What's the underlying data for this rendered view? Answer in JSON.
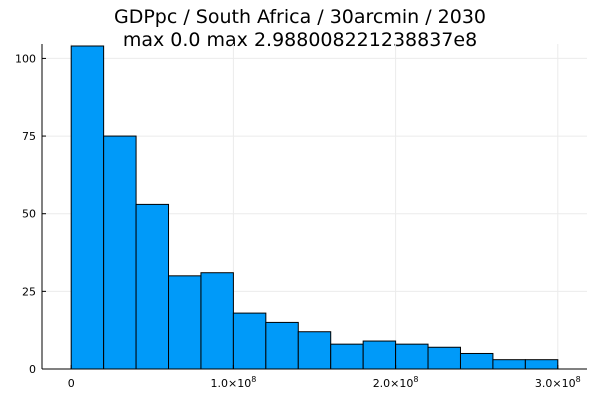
{
  "chart_data": {
    "type": "bar",
    "title": "GDPpc / South Africa / 30arcmin / 2030",
    "subtitle": "max 0.0  max 2.988008221238837e8",
    "xlabel": "",
    "ylabel": "",
    "bin_edges": [
      0,
      20000000,
      40000000,
      60000000,
      80000000,
      100000000,
      120000000,
      140000000,
      160000000,
      180000000,
      200000000,
      220000000,
      240000000,
      260000000,
      280000000,
      300000000
    ],
    "values": [
      104,
      75,
      53,
      30,
      31,
      18,
      15,
      12,
      8,
      9,
      8,
      7,
      5,
      3,
      3
    ],
    "xlim": [
      -18000000,
      318000000
    ],
    "ylim": [
      0,
      104
    ],
    "x_ticks": [
      {
        "value": 0,
        "base": "0",
        "exp": ""
      },
      {
        "value": 100000000,
        "base": "1.0×10",
        "exp": "8"
      },
      {
        "value": 200000000,
        "base": "2.0×10",
        "exp": "8"
      },
      {
        "value": 300000000,
        "base": "3.0×10",
        "exp": "8"
      }
    ],
    "y_ticks": [
      {
        "value": 0,
        "label": "0"
      },
      {
        "value": 25,
        "label": "25"
      },
      {
        "value": 50,
        "label": "50"
      },
      {
        "value": 75,
        "label": "75"
      },
      {
        "value": 100,
        "label": "100"
      }
    ],
    "grid": true,
    "legend": "none",
    "colors": {
      "bar_fill": "#009af9",
      "bar_stroke": "#000000",
      "grid": "#ebebeb",
      "axis": "#000000"
    }
  }
}
